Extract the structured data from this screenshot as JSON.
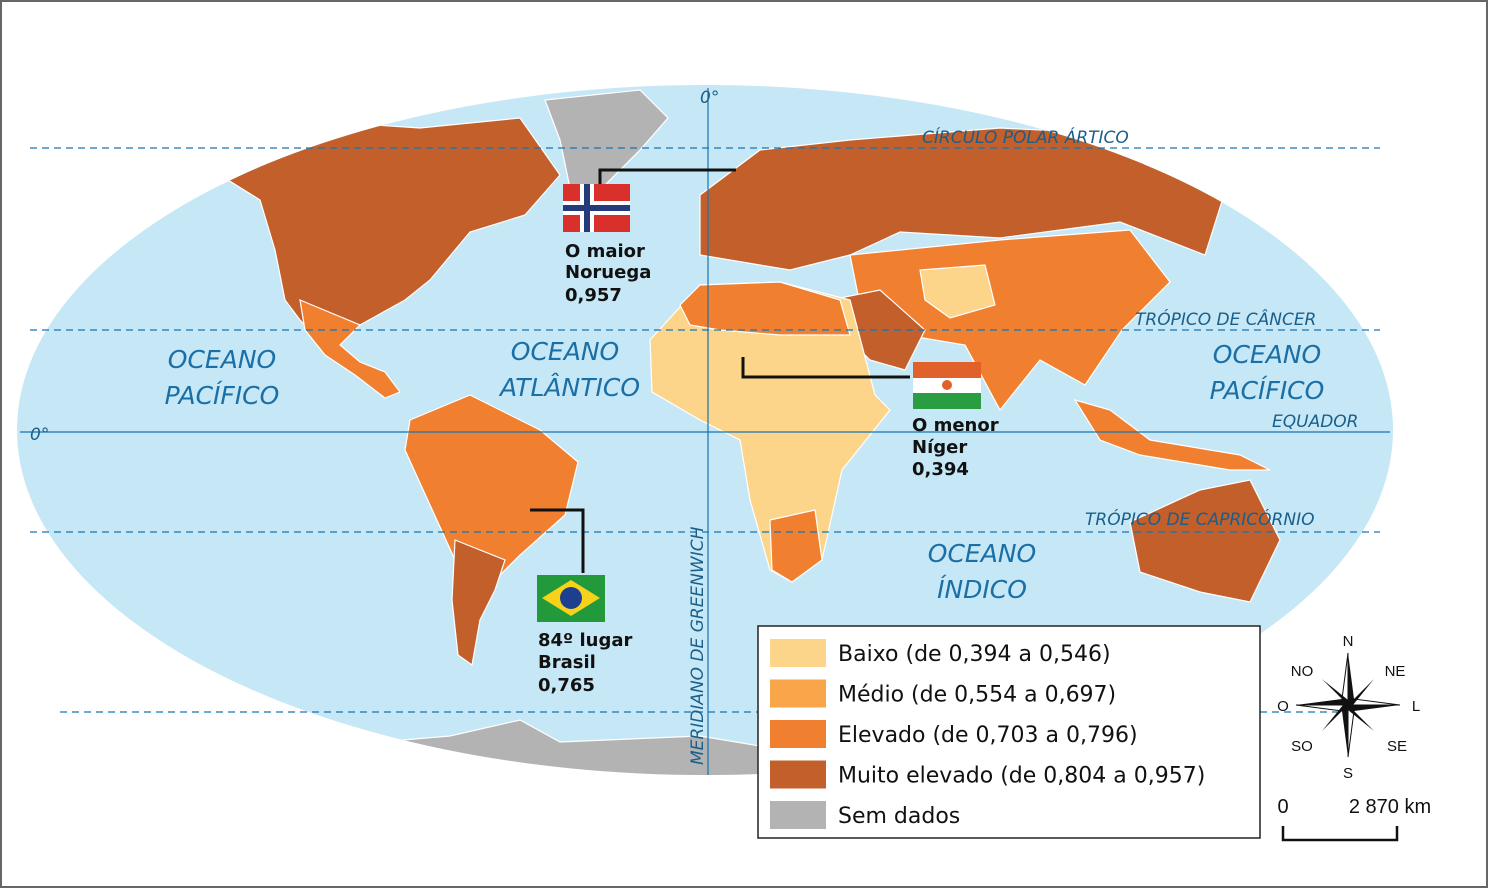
{
  "map_labels": {
    "meridian_top": "0°",
    "arctic_circle": "CÍRCULO POLAR ÁRTICO",
    "tropic_cancer": "TRÓPICO DE CÂNCER",
    "equator": "EQUADOR",
    "tropic_capricorn": "TRÓPICO DE CAPRICÓRNIO",
    "equator_left": "0°",
    "greenwich": "MERIDIANO DE GREENWICH"
  },
  "oceans": [
    {
      "lines": [
        "OCEANO",
        "PACÍFICO"
      ]
    },
    {
      "lines": [
        "OCEANO",
        "ATLÂNTICO"
      ]
    },
    {
      "lines": [
        "OCEANO",
        "PACÍFICO"
      ]
    },
    {
      "lines": [
        "OCEANO",
        "ÍNDICO"
      ]
    }
  ],
  "callouts": [
    {
      "lines": [
        "O maior",
        "Noruega",
        "0,957"
      ]
    },
    {
      "lines": [
        "O menor",
        "Níger",
        "0,394"
      ]
    },
    {
      "lines": [
        "84º lugar",
        "Brasil",
        "0,765"
      ]
    }
  ],
  "legend": [
    {
      "label": "Baixo (de 0,394 a 0,546)",
      "color": "#fdd58a"
    },
    {
      "label": "Médio (de 0,554 a 0,697)",
      "color": "#f9a64a"
    },
    {
      "label": "Elevado (de 0,703 a 0,796)",
      "color": "#f07f30"
    },
    {
      "label": "Muito elevado (de 0,804 a 0,957)",
      "color": "#c25f2b"
    },
    {
      "label": "Sem dados",
      "color": "#b3b3b3"
    }
  ],
  "compass": {
    "n": "N",
    "ne": "NE",
    "e": "L",
    "se": "SE",
    "s": "S",
    "sw": "SO",
    "w": "O",
    "nw": "NO"
  },
  "scale": {
    "start": "0",
    "end": "2 870 km"
  }
}
